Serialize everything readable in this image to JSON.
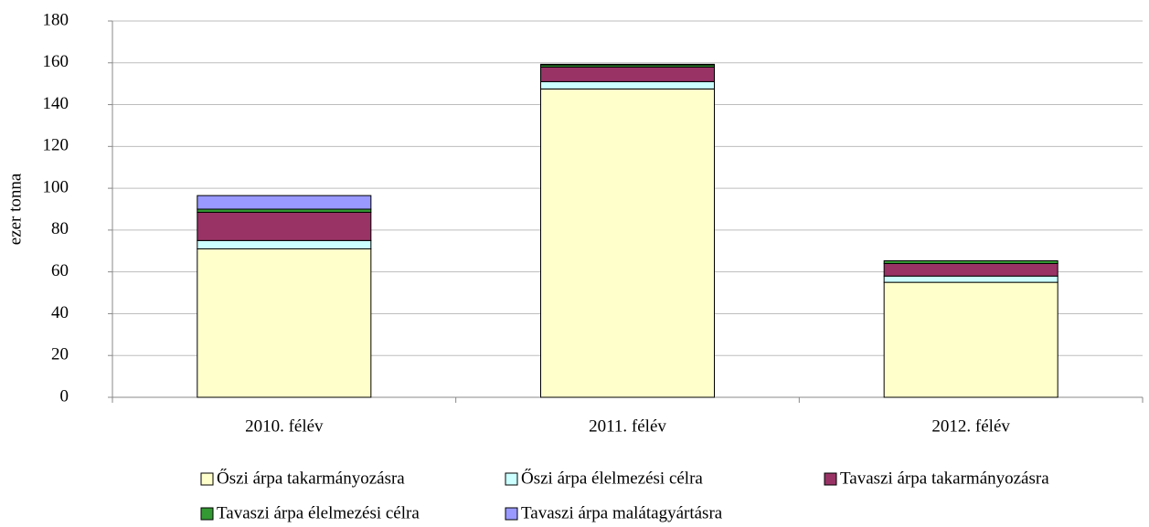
{
  "chart_data": {
    "type": "stacked_bar",
    "y_label": "ezer tonna",
    "categories": [
      "2010. félév",
      "2011. félév",
      "2012. félév"
    ],
    "series": [
      {
        "name": "Őszi árpa takarmányozásra",
        "color": "#ffffcc",
        "values": [
          71,
          147.5,
          55
        ]
      },
      {
        "name": "Őszi árpa élelmezési célra",
        "color": "#ccffff",
        "values": [
          4,
          3.5,
          3
        ]
      },
      {
        "name": "Tavaszi árpa takarmányozásra",
        "color": "#993366",
        "values": [
          13.5,
          7,
          6
        ]
      },
      {
        "name": "Tavaszi árpa élelmezési célra",
        "color": "#339933",
        "values": [
          1.5,
          1,
          1.3
        ]
      },
      {
        "name": "Tavaszi árpa malátagyártásra",
        "color": "#9999ff",
        "values": [
          6.5,
          0.3,
          0
        ]
      }
    ],
    "ylim": [
      0,
      180
    ],
    "yticks": [
      0,
      20,
      40,
      60,
      80,
      100,
      120,
      140,
      160,
      180
    ],
    "grid": true
  }
}
